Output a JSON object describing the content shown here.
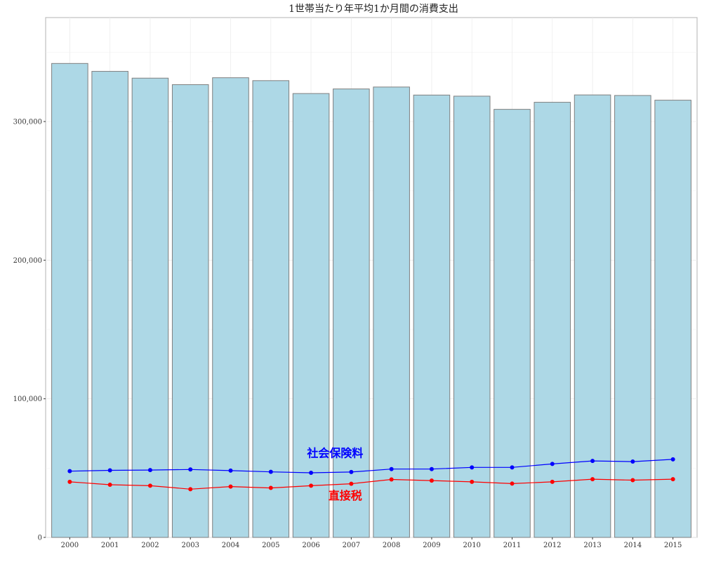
{
  "chart_data": {
    "type": "bar",
    "title": "1世帯当たり年平均1か月間の消費支出",
    "xlabel": "",
    "ylabel": "",
    "categories": [
      "2000",
      "2001",
      "2002",
      "2003",
      "2004",
      "2005",
      "2006",
      "2007",
      "2008",
      "2009",
      "2010",
      "2011",
      "2012",
      "2013",
      "2014",
      "2015"
    ],
    "values": [
      341900,
      336200,
      331300,
      326600,
      331600,
      329500,
      320200,
      323500,
      324900,
      319100,
      318300,
      308800,
      313900,
      319200,
      318800,
      315400
    ],
    "ylim": [
      0,
      375000
    ],
    "yticks": [
      0,
      100000,
      200000,
      300000
    ],
    "ytick_labels": [
      "0",
      "100,000",
      "200,000",
      "300,000"
    ],
    "grid": true,
    "bar_color": "#add8e6",
    "bar_edge_color": "#7f7f7f",
    "series": [
      {
        "name": "社会保険料",
        "type": "line",
        "color": "#0000ff",
        "values": [
          47800,
          48400,
          48600,
          49000,
          48200,
          47300,
          46600,
          47200,
          49300,
          49300,
          50500,
          50500,
          53000,
          55200,
          54700,
          56300
        ]
      },
      {
        "name": "直接税",
        "type": "line",
        "color": "#ff0000",
        "values": [
          40100,
          38000,
          37300,
          34800,
          36700,
          35700,
          37300,
          38700,
          41800,
          41000,
          40100,
          38800,
          40100,
          42000,
          41300,
          42000
        ]
      }
    ]
  }
}
